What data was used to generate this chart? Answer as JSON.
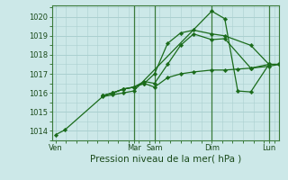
{
  "title": "Pression niveau de la mer( hPa )",
  "bg_color": "#cce8e8",
  "grid_color": "#aad0d0",
  "line_color": "#1a6b1a",
  "vline_color": "#3a7a3a",
  "ylim": [
    1013.5,
    1020.6
  ],
  "yticks": [
    1014,
    1015,
    1016,
    1017,
    1018,
    1019,
    1020
  ],
  "xlim": [
    -0.15,
    8.6
  ],
  "xtick_positions": [
    0,
    3.0,
    3.8,
    6.0,
    8.2
  ],
  "xtick_labels": [
    "Ven",
    "Mar",
    "Sam",
    "Dim",
    "Lun"
  ],
  "vlines": [
    3.0,
    3.8,
    6.0,
    8.2
  ],
  "series_x": [
    [
      0,
      0.35,
      1.8,
      2.2,
      2.6,
      3.0,
      6.0,
      6.5,
      7.0,
      7.5,
      8.2
    ],
    [
      1.8,
      2.2,
      2.6,
      3.0,
      3.4,
      3.8,
      4.3,
      4.8,
      5.3,
      6.0,
      6.5,
      7.5,
      8.2,
      8.6
    ],
    [
      1.8,
      2.2,
      2.6,
      3.0,
      3.4,
      3.8,
      4.3,
      4.8,
      5.3,
      6.0,
      6.5,
      7.5,
      8.2,
      8.6
    ],
    [
      1.8,
      2.2,
      2.6,
      3.0,
      3.4,
      3.8,
      4.3,
      4.8,
      5.3,
      6.0,
      6.5,
      7.0,
      7.5,
      8.2,
      8.6
    ]
  ],
  "series_y": [
    [
      1013.8,
      1014.05,
      1015.8,
      1015.9,
      1016.0,
      1016.1,
      1020.3,
      1019.9,
      1016.1,
      1016.05,
      1017.5
    ],
    [
      1015.85,
      1016.0,
      1016.2,
      1016.3,
      1016.5,
      1017.0,
      1018.6,
      1019.15,
      1019.3,
      1019.1,
      1019.0,
      1018.5,
      1017.5,
      1017.5
    ],
    [
      1015.85,
      1016.0,
      1016.2,
      1016.3,
      1016.6,
      1016.5,
      1017.5,
      1018.5,
      1019.1,
      1018.8,
      1018.85,
      1017.3,
      1017.5,
      1017.5
    ],
    [
      1015.85,
      1016.0,
      1016.2,
      1016.3,
      1016.5,
      1016.3,
      1016.8,
      1017.0,
      1017.1,
      1017.2,
      1017.2,
      1017.25,
      1017.3,
      1017.4,
      1017.5
    ]
  ]
}
